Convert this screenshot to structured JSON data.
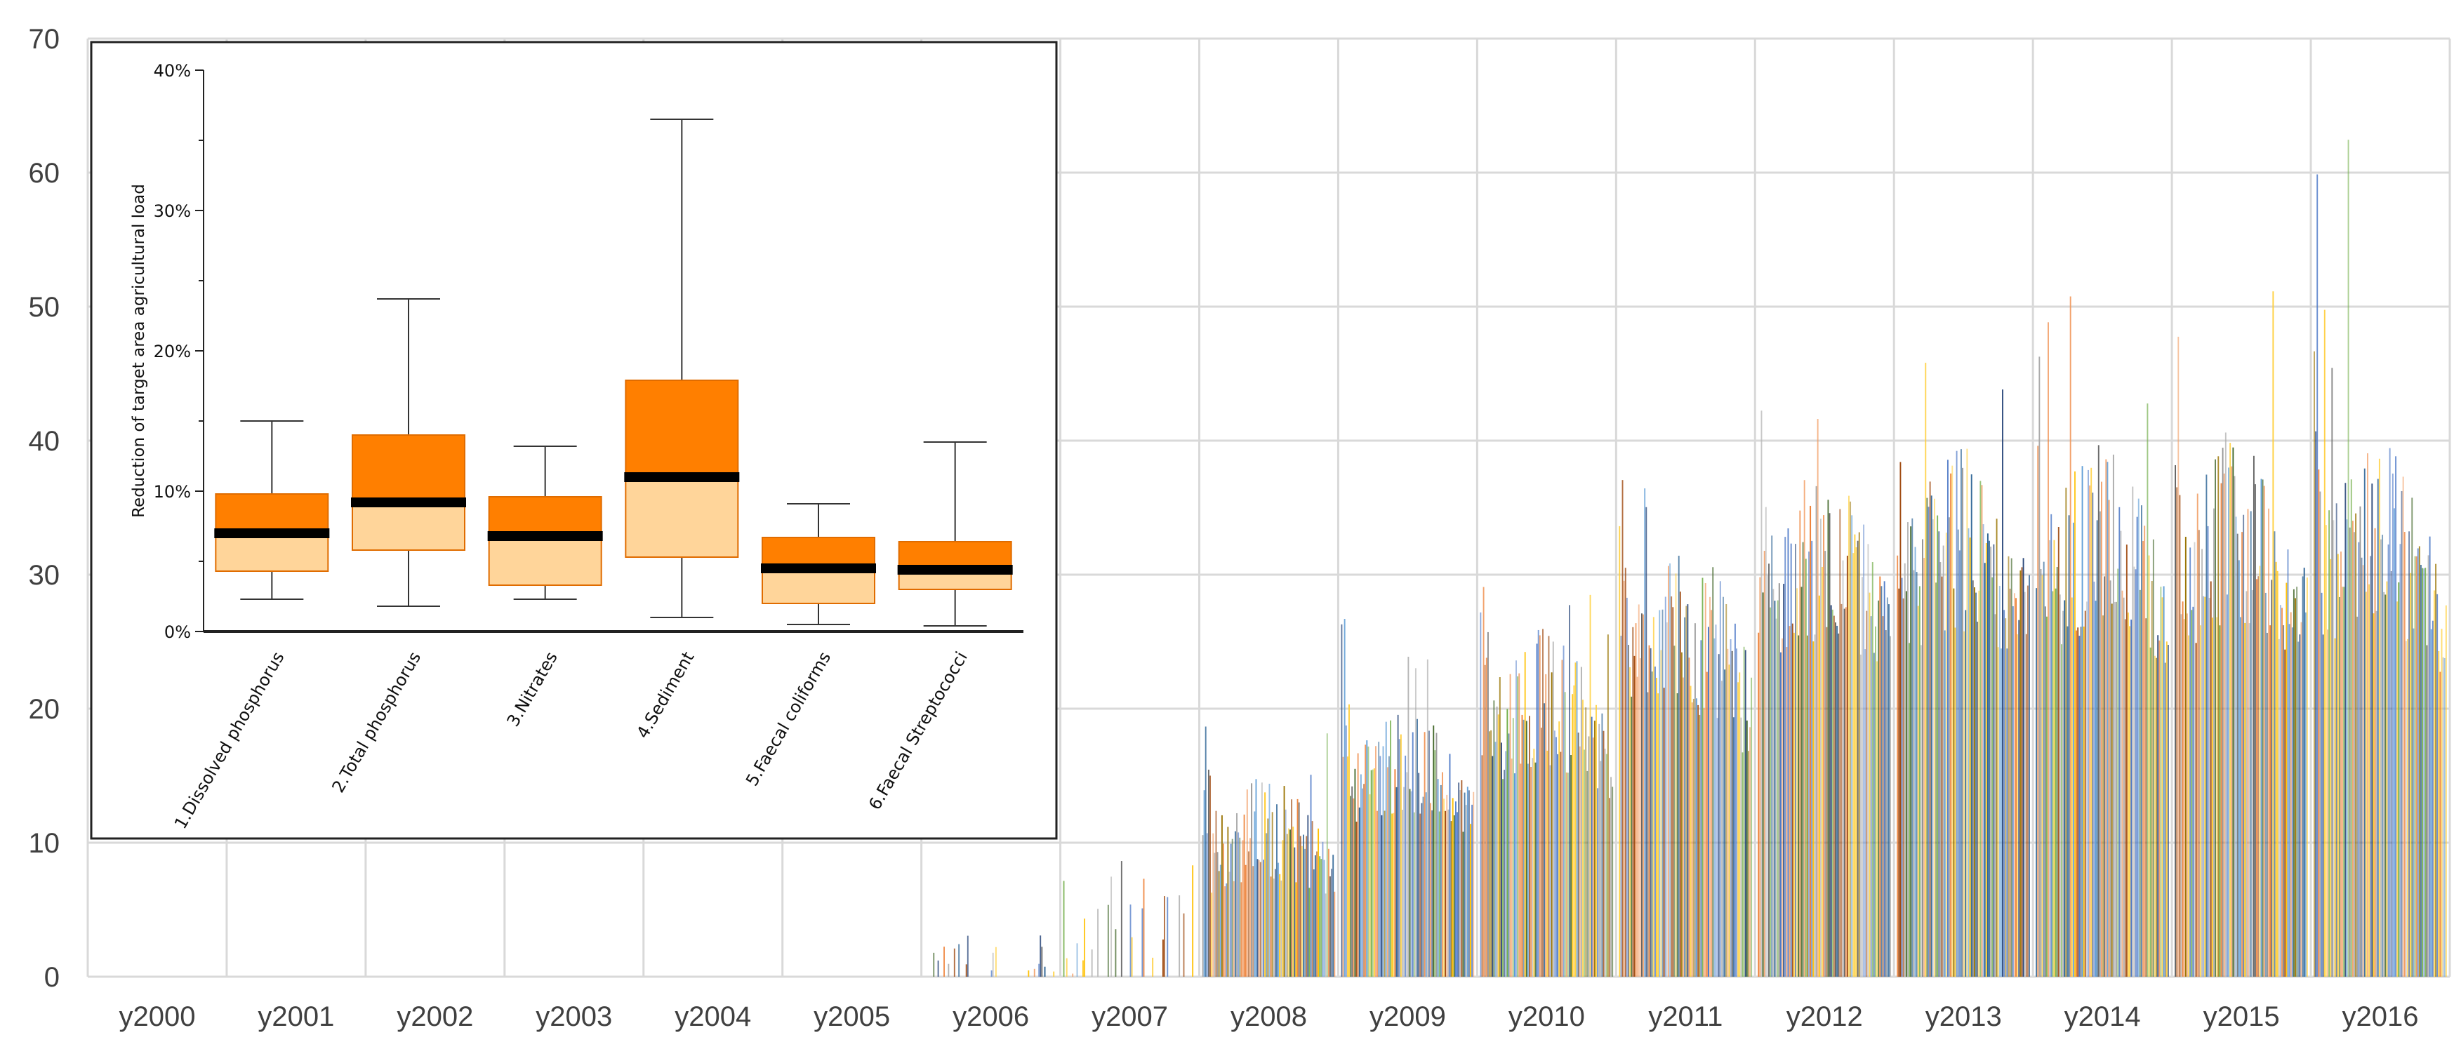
{
  "chart_data": [
    {
      "type": "bar",
      "title": "",
      "xlabel": "",
      "ylabel": "",
      "ylim": [
        0,
        70
      ],
      "y_ticks": [
        "0",
        "10",
        "20",
        "30",
        "40",
        "50",
        "60",
        "70"
      ],
      "categories": [
        "y2000",
        "y2001",
        "y2002",
        "y2003",
        "y2004",
        "y2005",
        "y2006",
        "y2007",
        "y2008",
        "y2009",
        "y2010",
        "y2011",
        "y2012",
        "y2013",
        "y2014",
        "y2015",
        "y2016"
      ],
      "grid": true,
      "legend": "none",
      "series_colors": [
        "#4472c4",
        "#ed7d31",
        "#a5a5a5",
        "#ffc000",
        "#5b9bd5",
        "#70ad47",
        "#264478",
        "#9e480e",
        "#636363",
        "#997300",
        "#255e91",
        "#43682b",
        "#698ed0",
        "#f1975a",
        "#b7b7b7",
        "#ffcd33"
      ],
      "yearly_peak_values": [
        0,
        0,
        0,
        0,
        0,
        0,
        3.8,
        9,
        19,
        27,
        32,
        39,
        43,
        50,
        53,
        53,
        64
      ],
      "yearly_typical_max": [
        0,
        0,
        0,
        0,
        0,
        0,
        1.5,
        3,
        15,
        20,
        26,
        33,
        38,
        40,
        40,
        40,
        40
      ],
      "yearly_typical_min": [
        0,
        0,
        0,
        0,
        0,
        0,
        0,
        0,
        3,
        8,
        10,
        12,
        18,
        18,
        18,
        18,
        18
      ]
    },
    {
      "type": "box",
      "ylabel": "Reduction of target area agricultural load",
      "ylim": [
        0,
        40
      ],
      "y_ticks": [
        "0%",
        "10%",
        "20%",
        "30%",
        "40%"
      ],
      "categories": [
        "1.Dissolved phosphorus",
        "2.Total phosphorus",
        "3.Nitrates",
        "4.Sediment",
        "5.Faecal coliforms",
        "6.Faecal Streptococci"
      ],
      "boxes": [
        {
          "min": 2.3,
          "q1": 4.3,
          "median": 7.0,
          "q3": 9.8,
          "max": 15.0
        },
        {
          "min": 1.8,
          "q1": 5.8,
          "median": 9.2,
          "q3": 14.0,
          "max": 23.7
        },
        {
          "min": 2.3,
          "q1": 3.3,
          "median": 6.8,
          "q3": 9.6,
          "max": 13.2
        },
        {
          "min": 1.0,
          "q1": 5.3,
          "median": 11.0,
          "q3": 17.9,
          "max": 36.5
        },
        {
          "min": 0.5,
          "q1": 2.0,
          "median": 4.5,
          "q3": 6.7,
          "max": 9.1
        },
        {
          "min": 0.4,
          "q1": 3.0,
          "median": 4.4,
          "q3": 6.4,
          "max": 13.5
        }
      ],
      "colors": {
        "upper": "#ff7f00",
        "lower": "#ffd59a",
        "median": "#000000",
        "whisker": "#333333"
      }
    }
  ]
}
